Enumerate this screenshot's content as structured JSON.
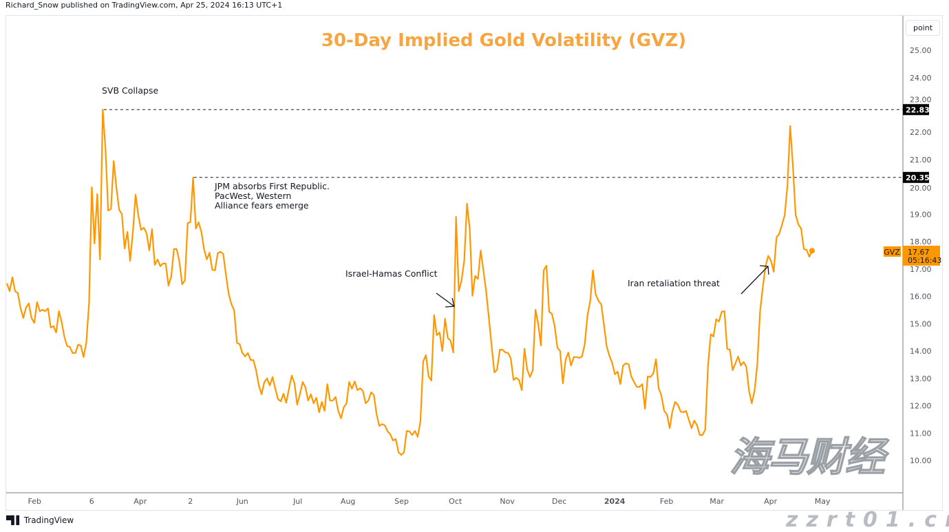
{
  "header": {
    "published": "Richard_Snow published on TradingView.com, Apr 25, 2024 16:13 UTC+1"
  },
  "toolbar": {
    "scale_mode": "point"
  },
  "footer": {
    "brand": "TradingView"
  },
  "watermark": {
    "chinese": "海马财经",
    "site": "zzrt01.cn"
  },
  "chart_data": {
    "type": "line",
    "title": "30-Day Implied Gold Volatility (GVZ)",
    "symbol": "GVZ",
    "last_value": "17.67",
    "countdown": "05:16:43",
    "line_color": "#ff9800",
    "title_color": "#f7a541",
    "x_range": [
      "2023-01-16",
      "2024-04-25"
    ],
    "ylim": [
      9,
      25.6
    ],
    "grid": false,
    "y_ticks": [
      "10.00",
      "11.00",
      "12.00",
      "13.00",
      "14.00",
      "15.00",
      "16.00",
      "17.00",
      "18.00",
      "19.00",
      "20.00",
      "21.00",
      "22.00",
      "23.00",
      "24.00",
      "25.00"
    ],
    "x_ticks": [
      {
        "label": "Feb",
        "date": "2023-02-01"
      },
      {
        "label": "6",
        "date": "2023-03-06"
      },
      {
        "label": "Apr",
        "date": "2023-04-03"
      },
      {
        "label": "2",
        "date": "2023-05-02"
      },
      {
        "label": "Jun",
        "date": "2023-06-01"
      },
      {
        "label": "Jul",
        "date": "2023-07-03"
      },
      {
        "label": "Aug",
        "date": "2023-08-01"
      },
      {
        "label": "Sep",
        "date": "2023-09-01"
      },
      {
        "label": "Oct",
        "date": "2023-10-02"
      },
      {
        "label": "Nov",
        "date": "2023-11-01"
      },
      {
        "label": "Dec",
        "date": "2023-12-01"
      },
      {
        "label": "2024",
        "date": "2024-01-02",
        "bold": true
      },
      {
        "label": "Feb",
        "date": "2024-02-01"
      },
      {
        "label": "Mar",
        "date": "2024-03-01"
      },
      {
        "label": "Apr",
        "date": "2024-04-01"
      },
      {
        "label": "May",
        "date": "2024-05-01"
      }
    ],
    "values": [
      16.47,
      16.19,
      16.7,
      16.19,
      16.12,
      15.56,
      15.21,
      15.59,
      15.74,
      15.21,
      15.03,
      15.79,
      15.46,
      15.51,
      15.46,
      15.56,
      14.86,
      14.91,
      14.68,
      15.46,
      15.06,
      14.51,
      14.18,
      14.15,
      13.93,
      13.93,
      14.23,
      14.2,
      13.78,
      14.3,
      15.76,
      19.99,
      17.93,
      19.74,
      17.35,
      22.83,
      21.38,
      19.14,
      19.19,
      20.95,
      19.97,
      19.16,
      19.01,
      17.75,
      18.36,
      17.3,
      18.36,
      19.72,
      18.96,
      18.43,
      18.51,
      18.31,
      17.68,
      18.46,
      17.15,
      17.35,
      17.1,
      17.2,
      17.2,
      16.39,
      16.72,
      17.73,
      17.73,
      17.27,
      16.44,
      16.59,
      18.68,
      18.71,
      20.35,
      18.48,
      18.71,
      18.36,
      17.73,
      17.35,
      17.6,
      16.97,
      16.95,
      17.58,
      17.63,
      17.55,
      16.77,
      16.09,
      15.71,
      15.49,
      14.3,
      14.25,
      13.93,
      13.8,
      13.93,
      13.67,
      13.67,
      13.3,
      12.74,
      12.42,
      12.87,
      13.0,
      12.74,
      13.05,
      12.62,
      12.24,
      12.16,
      12.44,
      12.11,
      12.62,
      13.1,
      12.82,
      12.04,
      12.42,
      12.87,
      12.67,
      12.19,
      12.42,
      12.09,
      12.29,
      11.76,
      12.14,
      11.81,
      12.79,
      12.19,
      12.19,
      12.32,
      11.81,
      11.54,
      11.94,
      12.09,
      12.87,
      12.62,
      12.89,
      12.57,
      12.64,
      12.54,
      12.09,
      12.19,
      12.49,
      12.39,
      11.69,
      11.26,
      11.33,
      11.28,
      11.06,
      10.96,
      10.73,
      10.78,
      10.3,
      10.2,
      10.3,
      11.08,
      11.06,
      10.93,
      11.08,
      10.86,
      11.41,
      13.62,
      13.85,
      13.07,
      12.92,
      15.31,
      14.58,
      14.68,
      14.0,
      15.18,
      14.48,
      14.38,
      13.95,
      18.91,
      16.19,
      16.57,
      17.32,
      19.39,
      18.46,
      16.02,
      16.75,
      16.64,
      17.68,
      16.95,
      16.19,
      15.21,
      14.18,
      13.22,
      13.32,
      14.05,
      14.05,
      13.95,
      13.93,
      13.73,
      12.94,
      13.02,
      12.94,
      12.57,
      14.08,
      13.32,
      13.05,
      13.3,
      15.51,
      15.01,
      14.2,
      16.95,
      17.12,
      15.44,
      15.36,
      14.93,
      14.13,
      14.0,
      12.82,
      13.67,
      13.95,
      13.47,
      13.78,
      13.78,
      13.75,
      13.8,
      14.25,
      15.31,
      15.84,
      16.95,
      16.07,
      15.84,
      15.71,
      14.96,
      14.18,
      13.83,
      13.57,
      13.15,
      13.25,
      12.79,
      13.47,
      13.55,
      13.52,
      13.07,
      12.87,
      12.69,
      12.69,
      12.79,
      11.89,
      13.07,
      13.05,
      13.17,
      13.7,
      12.64,
      12.37,
      11.81,
      11.69,
      11.18,
      11.79,
      12.14,
      12.04,
      11.79,
      11.76,
      11.81,
      11.49,
      11.18,
      11.46,
      11.28,
      10.93,
      10.93,
      11.13,
      13.45,
      14.61,
      14.53,
      15.16,
      15.08,
      15.44,
      15.46,
      14.08,
      14.05,
      13.3,
      13.55,
      13.8,
      13.47,
      13.6,
      13.42,
      12.54,
      12.09,
      12.54,
      13.5,
      15.44,
      16.32,
      17.1,
      17.48,
      17.3,
      16.9,
      18.16,
      18.28,
      18.61,
      18.96,
      20.04,
      22.23,
      20.8,
      18.99,
      18.63,
      18.48,
      17.73,
      17.7,
      17.45,
      17.67
    ],
    "levels": [
      {
        "value": 22.83,
        "label": "22.83",
        "from_date": "2023-03-13"
      },
      {
        "value": 20.35,
        "label": "20.35",
        "from_date": "2023-05-04"
      }
    ],
    "annotations": [
      {
        "id": "svb",
        "lines": [
          "SVB Collapse"
        ]
      },
      {
        "id": "jpm",
        "lines": [
          "JPM absorbs First Republic.",
          "PacWest, Western",
          "Alliance fears emerge"
        ]
      },
      {
        "id": "israel",
        "lines": [
          "Israel-Hamas Conflict"
        ]
      },
      {
        "id": "iran",
        "lines": [
          "Iran retaliation threat"
        ]
      }
    ]
  }
}
